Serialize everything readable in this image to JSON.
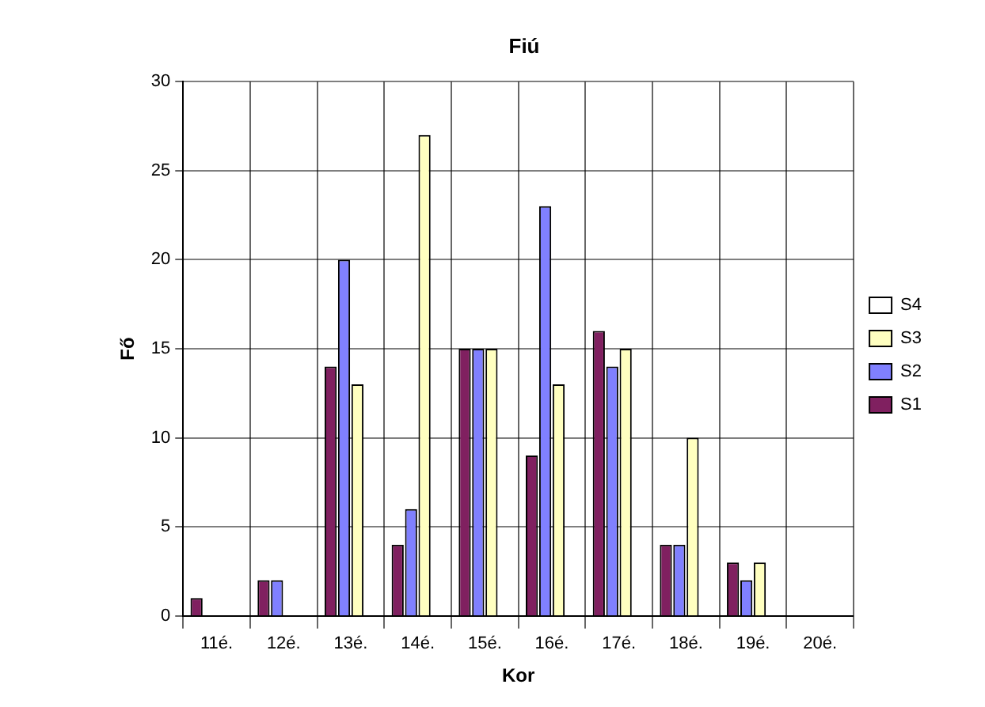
{
  "chart_data": {
    "type": "bar",
    "title": "Fiú",
    "xlabel": "Kor",
    "ylabel": "Fő",
    "categories": [
      "11é.",
      "12é.",
      "13é.",
      "14é.",
      "15é.",
      "16é.",
      "17é.",
      "18é.",
      "19é.",
      "20é."
    ],
    "series": [
      {
        "name": "S1",
        "color": "#802060",
        "values": [
          1,
          2,
          14,
          4,
          15,
          9,
          16,
          4,
          3,
          0
        ]
      },
      {
        "name": "S2",
        "color": "#8080ff",
        "values": [
          0,
          2,
          20,
          6,
          15,
          23,
          14,
          4,
          2,
          0
        ]
      },
      {
        "name": "S3",
        "color": "#ffffc0",
        "values": [
          0,
          null,
          13,
          27,
          15,
          13,
          15,
          10,
          3,
          0
        ]
      },
      {
        "name": "S4",
        "values": [
          null,
          null,
          null,
          null,
          null,
          null,
          null,
          null,
          null,
          null
        ]
      }
    ],
    "ylim": [
      0,
      30
    ],
    "yticks": [
      0,
      5,
      10,
      15,
      20,
      25,
      30
    ],
    "grid": true,
    "legend": "right"
  }
}
